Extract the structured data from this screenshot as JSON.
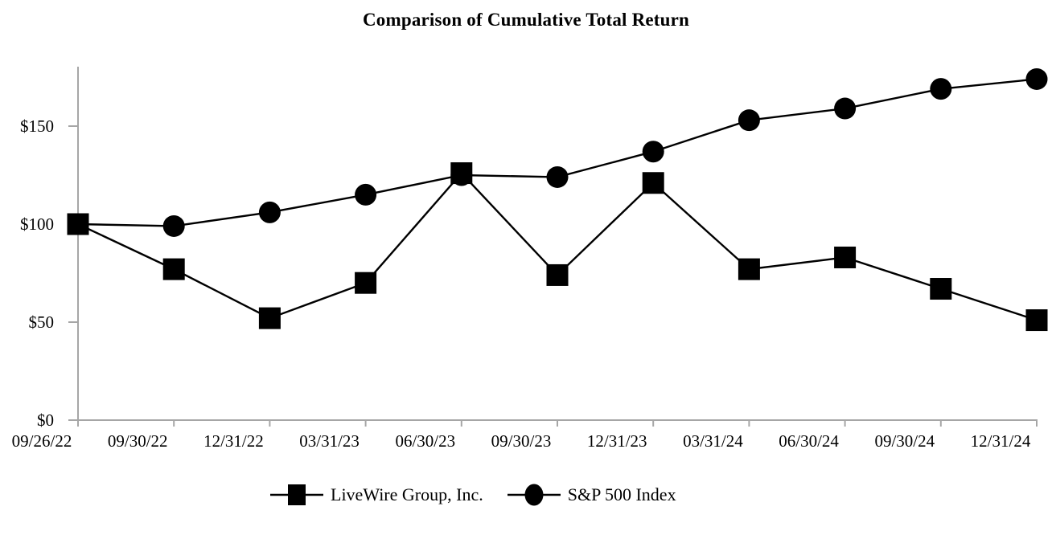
{
  "title": "Comparison of Cumulative Total Return",
  "legend": {
    "items": [
      {
        "label": "LiveWire Group, Inc.",
        "marker": "square"
      },
      {
        "label": "S&P 500 Index",
        "marker": "circle"
      }
    ]
  },
  "chart_data": {
    "type": "line",
    "title": "Comparison of Cumulative Total Return",
    "categories": [
      "09/26/22",
      "09/30/22",
      "12/31/22",
      "03/31/23",
      "06/30/23",
      "09/30/23",
      "12/31/23",
      "03/31/24",
      "06/30/24",
      "09/30/24",
      "12/31/24"
    ],
    "series": [
      {
        "name": "LiveWire Group, Inc.",
        "marker": "square",
        "values": [
          100,
          77,
          52,
          70,
          126,
          74,
          121,
          77,
          83,
          67,
          51
        ]
      },
      {
        "name": "S&P 500 Index",
        "marker": "circle",
        "values": [
          100,
          99,
          106,
          115,
          125,
          124,
          137,
          153,
          159,
          169,
          174
        ]
      }
    ],
    "y_ticks": [
      0,
      50,
      100,
      150
    ],
    "y_tick_labels": [
      "$0",
      "$50",
      "$100",
      "$150"
    ],
    "ylim": [
      0,
      180
    ],
    "xlabel": "",
    "ylabel": "",
    "grid": false,
    "legend_position": "bottom",
    "colors": {
      "axis": "#a6a6a6",
      "series": "#000000",
      "text": "#000000",
      "background": "#ffffff"
    }
  }
}
